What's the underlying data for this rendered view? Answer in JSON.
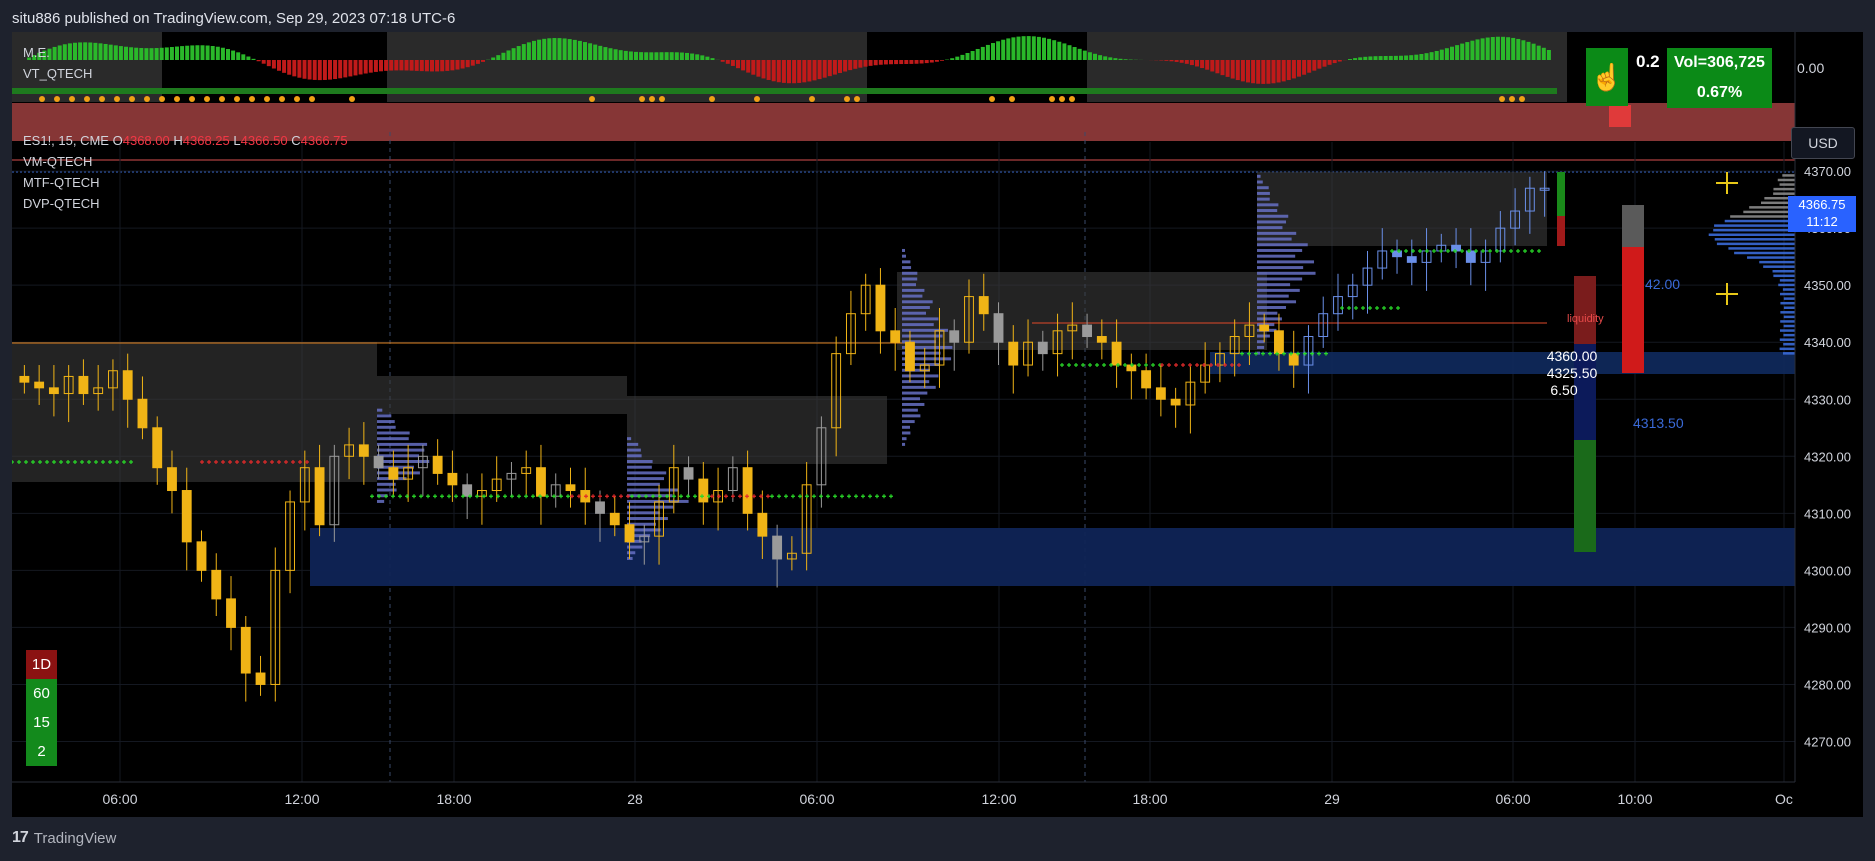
{
  "header": {
    "publish_text": "situ886 published on TradingView.com, Sep 29, 2023 07:18 UTC-6"
  },
  "symbol": {
    "name": "ES1!, 15, CME",
    "o_label": "O",
    "o": "4368.00",
    "h_label": "H",
    "h": "4368.25",
    "l_label": "L",
    "l": "4366.50",
    "c_label": "C",
    "c": "4366.75"
  },
  "indicators": {
    "me": "M.E.",
    "vt": "VT_QTECH",
    "vm": "VM-QTECH",
    "mtf": "MTF-QTECH",
    "dvp": "DVP-QTECH"
  },
  "top_panel": {
    "axis_value": "0.00",
    "ratio": "0.2",
    "volume": "Vol=306,725",
    "percent": "0.67%",
    "hand_icon": "hand-pointer-icon"
  },
  "currency": "USD",
  "last_price": {
    "price": "4366.75",
    "countdown": "11:12"
  },
  "annotations": {
    "liquidity": "liquidity",
    "level_42": "42.00",
    "level_4313": "4313.50",
    "box_values": [
      "4360.00",
      "4325.50",
      "6.50"
    ]
  },
  "timeframes": [
    {
      "label": "1D",
      "color": "#8b1212"
    },
    {
      "label": "60",
      "color": "#138a1c"
    },
    {
      "label": "15",
      "color": "#138a1c"
    },
    {
      "label": "2",
      "color": "#138a1c"
    }
  ],
  "colors": {
    "up": "#f0b416",
    "down": "#f0b416",
    "vp_blue": "#5b64b8",
    "accent_blue": "#2962ff"
  },
  "footer": {
    "brand": "TradingView",
    "logo": "17"
  },
  "chart_data": {
    "type": "candlestick",
    "y_axis_ticks": [
      "4370.00",
      "4360.00",
      "4350.00",
      "4340.00",
      "4330.00",
      "4320.00",
      "4310.00",
      "4300.00",
      "4290.00",
      "4280.00",
      "4270.00"
    ],
    "ylim": [
      4265,
      4373
    ],
    "x_axis_ticks": [
      "06:00",
      "12:00",
      "18:00",
      "28",
      "06:00",
      "12:00",
      "18:00",
      "29",
      "06:00",
      "10:00",
      "Oc"
    ],
    "close_path": [
      4333,
      4332,
      4331,
      4334,
      4331,
      4332,
      4335,
      4330,
      4325,
      4318,
      4314,
      4305,
      4300,
      4295,
      4290,
      4282,
      4280,
      4300,
      4312,
      4318,
      4308,
      4320,
      4322,
      4320,
      4318,
      4316,
      4318,
      4320,
      4317,
      4315,
      4313,
      4314,
      4316,
      4317,
      4318,
      4313,
      4315,
      4314,
      4312,
      4310,
      4308,
      4305,
      4306,
      4312,
      4318,
      4316,
      4312,
      4314,
      4318,
      4310,
      4306,
      4302,
      4303,
      4315,
      4325,
      4338,
      4345,
      4350,
      4342,
      4340,
      4335,
      4336,
      4342,
      4340,
      4348,
      4345,
      4340,
      4336,
      4340,
      4338,
      4342,
      4343,
      4341,
      4340,
      4336,
      4335,
      4332,
      4330,
      4329,
      4333,
      4336,
      4338,
      4341,
      4343,
      4342,
      4338,
      4336,
      4341,
      4345,
      4348,
      4350,
      4353,
      4356,
      4355,
      4354,
      4356,
      4357,
      4356,
      4354,
      4356,
      4360,
      4363,
      4367,
      4367
    ]
  }
}
